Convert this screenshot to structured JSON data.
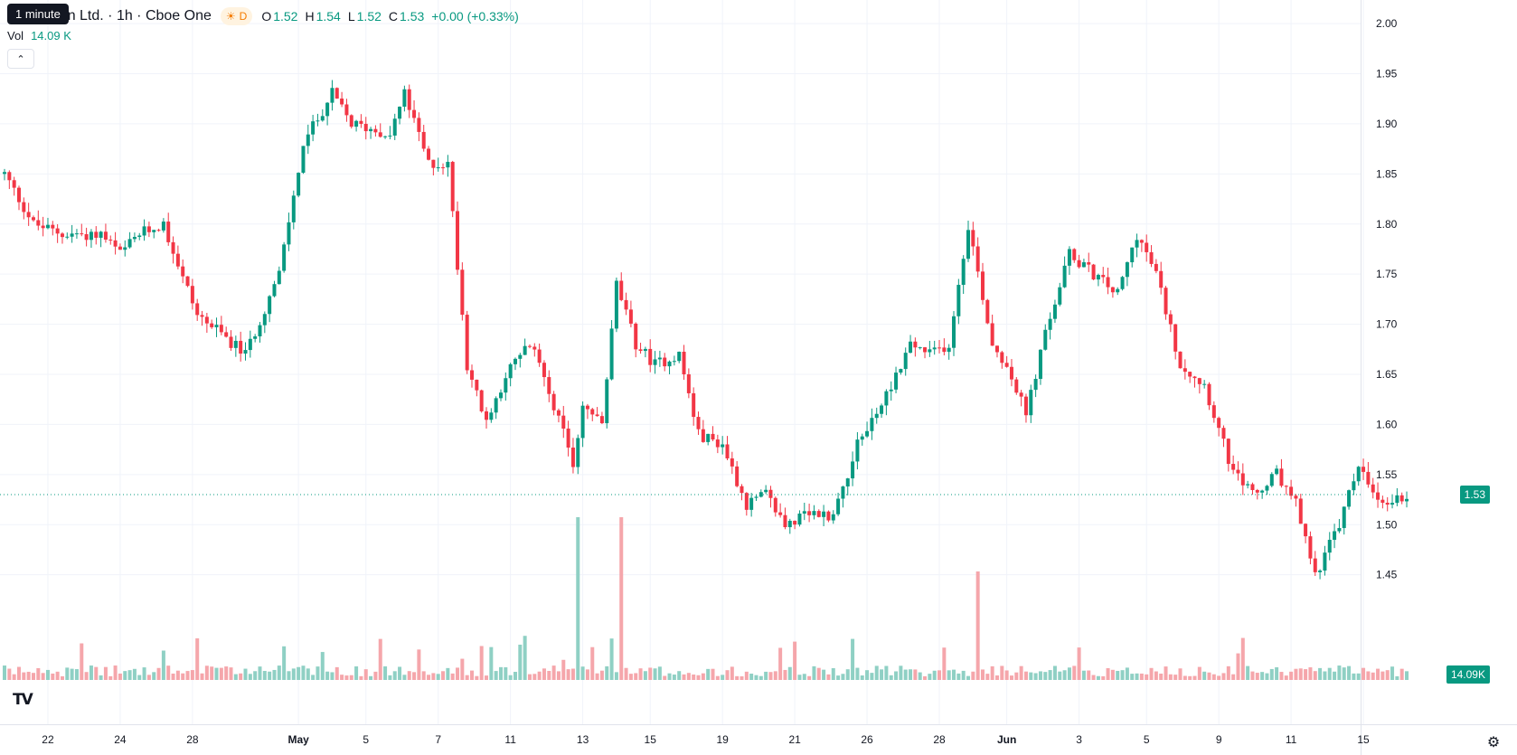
{
  "header": {
    "title": "Dimension Ltd. · 1h · Cboe One",
    "session_badge": "D",
    "session_icon": "sun-icon",
    "open_label": "O",
    "open": "1.52",
    "high_label": "H",
    "high": "1.54",
    "low_label": "L",
    "low": "1.52",
    "close_label": "C",
    "close": "1.53",
    "change": "+0.00 (+0.33%)"
  },
  "tooltip": "1 minute",
  "volume_legend": {
    "label": "Vol",
    "value": "14.09 K"
  },
  "collapse_icon": "chevron-up-icon",
  "logo_icon": "tradingview-logo-icon",
  "settings_icon": "gear-icon",
  "last_price_label": "1.53",
  "last_volume_label": "14.09K",
  "colors": {
    "up": "#089981",
    "down": "#f23645",
    "up_vol": "#8fd0c4",
    "down_vol": "#f5a6ab",
    "grid": "#f0f3fa"
  },
  "chart_data": {
    "type": "candlestick",
    "title": "Dimension Ltd. · 1h · Cboe One",
    "y_ticks": [
      "2.00",
      "1.95",
      "1.90",
      "1.85",
      "1.80",
      "1.75",
      "1.70",
      "1.65",
      "1.60",
      "1.55",
      "1.50",
      "1.45"
    ],
    "ylim": [
      1.41,
      2.01
    ],
    "x_ticks": [
      "22",
      "24",
      "28",
      "May",
      "5",
      "7",
      "11",
      "13",
      "15",
      "19",
      "21",
      "26",
      "28",
      "Jun",
      "3",
      "5",
      "9",
      "11",
      "15"
    ],
    "last_price": 1.53,
    "series": [
      {
        "name": "price",
        "anchors": [
          [
            0,
            1.85
          ],
          [
            6,
            1.8
          ],
          [
            12,
            1.79
          ],
          [
            20,
            1.79
          ],
          [
            24,
            1.77
          ],
          [
            28,
            1.79
          ],
          [
            33,
            1.8
          ],
          [
            36,
            1.76
          ],
          [
            40,
            1.71
          ],
          [
            45,
            1.69
          ],
          [
            50,
            1.67
          ],
          [
            57,
            1.75
          ],
          [
            62,
            1.88
          ],
          [
            68,
            1.93
          ],
          [
            72,
            1.9
          ],
          [
            80,
            1.89
          ],
          [
            83,
            1.93
          ],
          [
            88,
            1.86
          ],
          [
            92,
            1.86
          ],
          [
            96,
            1.66
          ],
          [
            100,
            1.6
          ],
          [
            104,
            1.65
          ],
          [
            109,
            1.68
          ],
          [
            112,
            1.65
          ],
          [
            118,
            1.56
          ],
          [
            120,
            1.62
          ],
          [
            124,
            1.6
          ],
          [
            127,
            1.74
          ],
          [
            131,
            1.68
          ],
          [
            135,
            1.66
          ],
          [
            140,
            1.67
          ],
          [
            144,
            1.59
          ],
          [
            149,
            1.58
          ],
          [
            154,
            1.52
          ],
          [
            158,
            1.53
          ],
          [
            162,
            1.5
          ],
          [
            167,
            1.51
          ],
          [
            172,
            1.51
          ],
          [
            177,
            1.58
          ],
          [
            182,
            1.62
          ],
          [
            188,
            1.68
          ],
          [
            192,
            1.67
          ],
          [
            196,
            1.68
          ],
          [
            200,
            1.8
          ],
          [
            205,
            1.68
          ],
          [
            208,
            1.66
          ],
          [
            212,
            1.61
          ],
          [
            216,
            1.69
          ],
          [
            221,
            1.77
          ],
          [
            226,
            1.75
          ],
          [
            231,
            1.73
          ],
          [
            235,
            1.79
          ],
          [
            239,
            1.75
          ],
          [
            244,
            1.66
          ],
          [
            249,
            1.64
          ],
          [
            255,
            1.55
          ],
          [
            260,
            1.53
          ],
          [
            264,
            1.55
          ],
          [
            268,
            1.52
          ],
          [
            272,
            1.45
          ],
          [
            277,
            1.5
          ],
          [
            281,
            1.56
          ],
          [
            285,
            1.52
          ],
          [
            292,
            1.53
          ]
        ]
      },
      {
        "name": "volume",
        "unit": "K",
        "last": 14.09
      }
    ]
  }
}
